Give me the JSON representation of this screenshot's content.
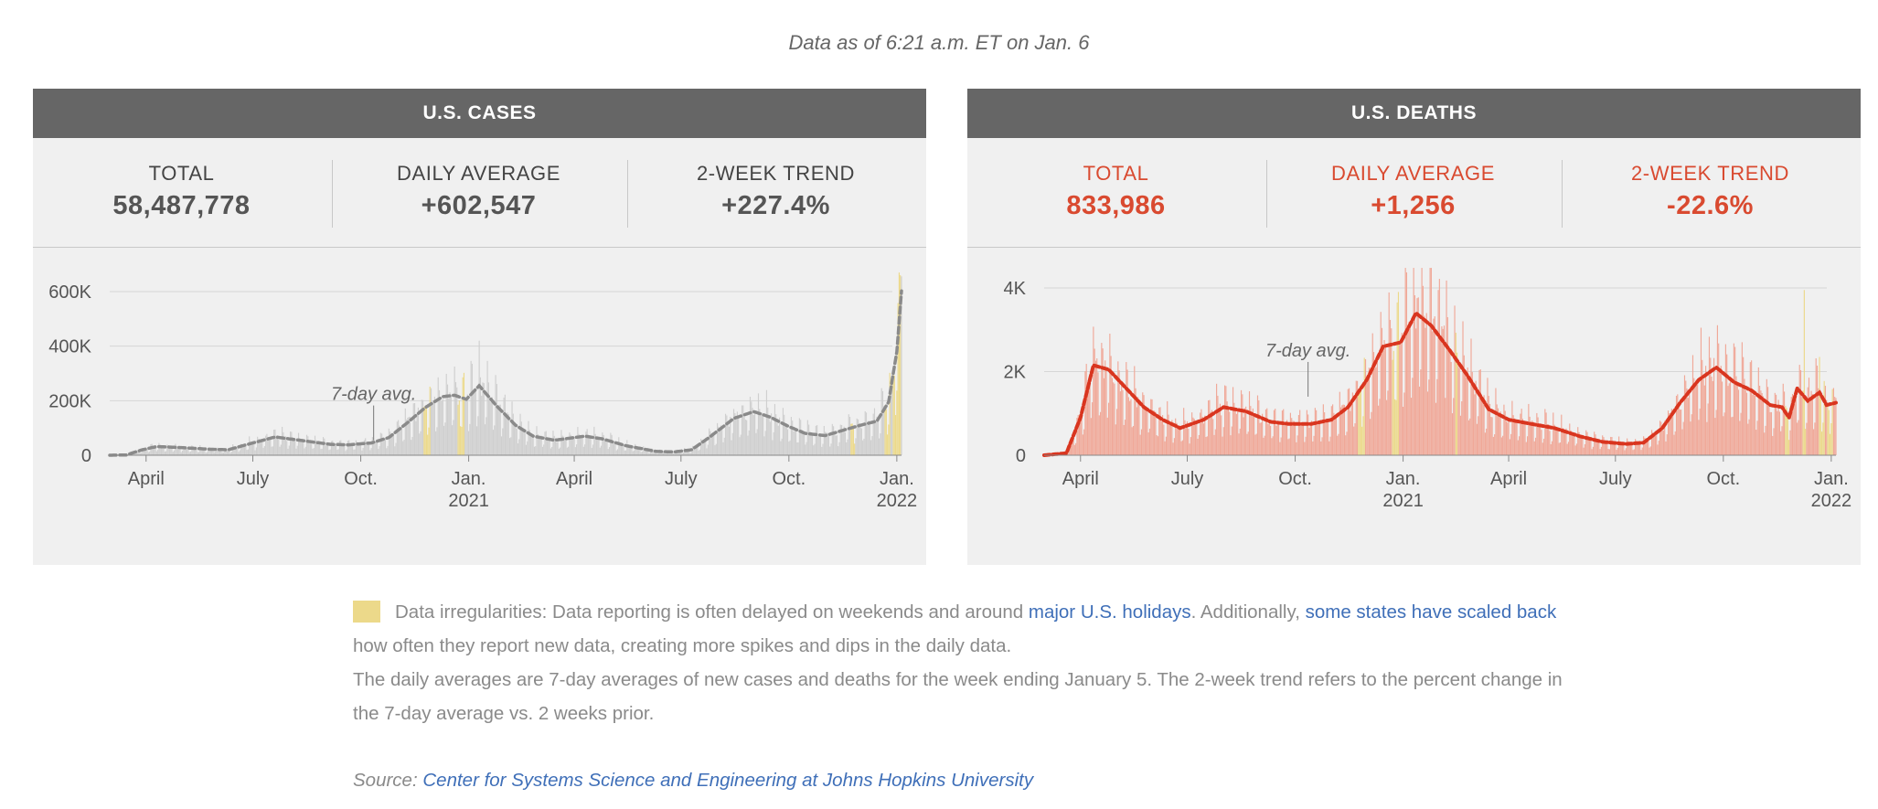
{
  "header": {
    "as_of": "Data as of 6:21 a.m. ET on Jan. 6"
  },
  "colors": {
    "panel_bg": "#f0f0f0",
    "header_bg": "#666666",
    "cases_bar": "#cfcfcf",
    "cases_avg": "#8a8a8a",
    "deaths_bar": "#f0a898",
    "deaths_avg": "#d9351f",
    "irregular": "#ecd98a",
    "accent_red": "#d94a30",
    "link": "#3f6fb8"
  },
  "cases": {
    "title": "U.S. CASES",
    "stats": [
      {
        "label": "TOTAL",
        "value": "58,487,778"
      },
      {
        "label": "DAILY AVERAGE",
        "value": "+602,547"
      },
      {
        "label": "2-WEEK TREND",
        "value": "+227.4%"
      }
    ]
  },
  "deaths": {
    "title": "U.S. DEATHS",
    "stats": [
      {
        "label": "TOTAL",
        "value": "833,986"
      },
      {
        "label": "DAILY AVERAGE",
        "value": "+1,256"
      },
      {
        "label": "2-WEEK TREND",
        "value": "-22.6%"
      }
    ]
  },
  "legend": {
    "line1_a": "Data irregularities: Data reporting is often delayed on weekends and around ",
    "link1": "major U.S. holidays",
    "line1_b": ". Additionally, ",
    "link2": "some states have scaled back",
    "line1_c": " how often they report new data, creating more spikes and dips in the daily data.",
    "line2": "The daily averages are 7-day averages of new cases and deaths for the week ending January 5. The 2-week trend refers to the percent change in the 7-day average vs. 2 weeks prior."
  },
  "source": {
    "label": "Source: ",
    "link": "Center for Systems Science and Engineering at Johns Hopkins University"
  },
  "chart_data": [
    {
      "type": "bar",
      "name": "U.S. CASES",
      "xlim": [
        "2020-03-01",
        "2022-01-05"
      ],
      "ylim": [
        0,
        680000
      ],
      "y_ticks": [
        0,
        200000,
        400000,
        600000
      ],
      "y_tick_labels": [
        "0",
        "200K",
        "400K",
        "600K"
      ],
      "x_tick_dates": [
        "2020-04-01",
        "2020-07-01",
        "2020-10-01",
        "2021-01-01",
        "2021-04-01",
        "2021-07-01",
        "2021-10-01",
        "2022-01-01"
      ],
      "x_tick_labels": [
        "April",
        "July",
        "Oct.",
        "Jan.\n2021",
        "April",
        "July",
        "Oct.",
        "Jan.\n2022"
      ],
      "annotation": {
        "text": "7-day avg.",
        "date": "2020-10-12",
        "value": 55000
      },
      "grid": true,
      "avg_line": [
        [
          "2020-03-01",
          0
        ],
        [
          "2020-03-15",
          1000
        ],
        [
          "2020-03-28",
          19000
        ],
        [
          "2020-04-10",
          32000
        ],
        [
          "2020-05-01",
          28000
        ],
        [
          "2020-05-25",
          22000
        ],
        [
          "2020-06-10",
          20000
        ],
        [
          "2020-06-25",
          38000
        ],
        [
          "2020-07-20",
          67000
        ],
        [
          "2020-08-10",
          55000
        ],
        [
          "2020-09-05",
          40000
        ],
        [
          "2020-09-20",
          38000
        ],
        [
          "2020-10-10",
          45000
        ],
        [
          "2020-10-25",
          65000
        ],
        [
          "2020-11-10",
          120000
        ],
        [
          "2020-11-25",
          175000
        ],
        [
          "2020-12-10",
          215000
        ],
        [
          "2020-12-20",
          220000
        ],
        [
          "2020-12-30",
          205000
        ],
        [
          "2021-01-10",
          255000
        ],
        [
          "2021-01-25",
          180000
        ],
        [
          "2021-02-10",
          110000
        ],
        [
          "2021-02-25",
          70000
        ],
        [
          "2021-03-15",
          55000
        ],
        [
          "2021-04-10",
          70000
        ],
        [
          "2021-04-25",
          60000
        ],
        [
          "2021-05-15",
          35000
        ],
        [
          "2021-06-10",
          14000
        ],
        [
          "2021-06-25",
          12000
        ],
        [
          "2021-07-10",
          20000
        ],
        [
          "2021-07-25",
          65000
        ],
        [
          "2021-08-15",
          135000
        ],
        [
          "2021-09-01",
          160000
        ],
        [
          "2021-09-15",
          140000
        ],
        [
          "2021-10-01",
          105000
        ],
        [
          "2021-10-15",
          80000
        ],
        [
          "2021-11-01",
          72000
        ],
        [
          "2021-11-15",
          90000
        ],
        [
          "2021-12-01",
          110000
        ],
        [
          "2021-12-15",
          125000
        ],
        [
          "2021-12-25",
          195000
        ],
        [
          "2022-01-01",
          380000
        ],
        [
          "2022-01-05",
          602547
        ]
      ],
      "spikes": [
        [
          "2021-12-27",
          270000
        ],
        [
          "2022-01-03",
          670000
        ],
        [
          "2022-01-04",
          660000
        ]
      ],
      "irregular_periods": [
        [
          "2020-11-24",
          "2020-11-29"
        ],
        [
          "2020-12-23",
          "2020-12-28"
        ],
        [
          "2021-11-23",
          "2021-11-26"
        ],
        [
          "2021-12-22",
          "2021-12-26"
        ],
        [
          "2021-12-29",
          "2022-01-04"
        ]
      ]
    },
    {
      "type": "bar",
      "name": "U.S. DEATHS",
      "xlim": [
        "2020-03-01",
        "2022-01-05"
      ],
      "ylim": [
        0,
        4500
      ],
      "y_ticks": [
        0,
        2000,
        4000
      ],
      "y_tick_labels": [
        "0",
        "2K",
        "4K"
      ],
      "x_tick_dates": [
        "2020-04-01",
        "2020-07-01",
        "2020-10-01",
        "2021-01-01",
        "2021-04-01",
        "2021-07-01",
        "2021-10-01",
        "2022-01-01"
      ],
      "x_tick_labels": [
        "April",
        "July",
        "Oct.",
        "Jan.\n2021",
        "April",
        "July",
        "Oct.",
        "Jan.\n2022"
      ],
      "annotation": {
        "text": "7-day avg.",
        "date": "2020-10-12",
        "value": 1400
      },
      "grid": true,
      "avg_line": [
        [
          "2020-03-01",
          0
        ],
        [
          "2020-03-20",
          50
        ],
        [
          "2020-04-01",
          900
        ],
        [
          "2020-04-12",
          2150
        ],
        [
          "2020-04-25",
          2050
        ],
        [
          "2020-05-10",
          1600
        ],
        [
          "2020-05-25",
          1150
        ],
        [
          "2020-06-10",
          850
        ],
        [
          "2020-06-25",
          650
        ],
        [
          "2020-07-15",
          850
        ],
        [
          "2020-08-01",
          1150
        ],
        [
          "2020-08-20",
          1050
        ],
        [
          "2020-09-10",
          800
        ],
        [
          "2020-09-25",
          750
        ],
        [
          "2020-10-15",
          750
        ],
        [
          "2020-11-01",
          850
        ],
        [
          "2020-11-15",
          1150
        ],
        [
          "2020-12-01",
          1800
        ],
        [
          "2020-12-15",
          2600
        ],
        [
          "2020-12-30",
          2700
        ],
        [
          "2021-01-12",
          3400
        ],
        [
          "2021-01-25",
          3100
        ],
        [
          "2021-02-10",
          2500
        ],
        [
          "2021-02-25",
          1900
        ],
        [
          "2021-03-15",
          1100
        ],
        [
          "2021-04-01",
          850
        ],
        [
          "2021-04-20",
          750
        ],
        [
          "2021-05-10",
          650
        ],
        [
          "2021-06-01",
          450
        ],
        [
          "2021-06-20",
          320
        ],
        [
          "2021-07-10",
          270
        ],
        [
          "2021-07-25",
          300
        ],
        [
          "2021-08-10",
          650
        ],
        [
          "2021-08-25",
          1250
        ],
        [
          "2021-09-10",
          1800
        ],
        [
          "2021-09-25",
          2100
        ],
        [
          "2021-10-10",
          1750
        ],
        [
          "2021-10-25",
          1550
        ],
        [
          "2021-11-10",
          1200
        ],
        [
          "2021-11-20",
          1150
        ],
        [
          "2021-11-26",
          900
        ],
        [
          "2021-12-03",
          1600
        ],
        [
          "2021-12-12",
          1300
        ],
        [
          "2021-12-22",
          1500
        ],
        [
          "2021-12-28",
          1200
        ],
        [
          "2022-01-05",
          1256
        ]
      ],
      "spikes": [
        [
          "2021-02-05",
          3100
        ],
        [
          "2021-12-09",
          3950
        ],
        [
          "2021-12-22",
          2350
        ]
      ],
      "irregular_periods": [
        [
          "2020-11-24",
          "2020-11-29"
        ],
        [
          "2020-12-23",
          "2020-12-28"
        ],
        [
          "2021-02-15",
          "2021-02-16"
        ],
        [
          "2021-11-23",
          "2021-11-26"
        ],
        [
          "2021-12-08",
          "2021-12-10"
        ],
        [
          "2021-12-22",
          "2021-12-26"
        ],
        [
          "2021-12-29",
          "2022-01-02"
        ]
      ]
    }
  ]
}
